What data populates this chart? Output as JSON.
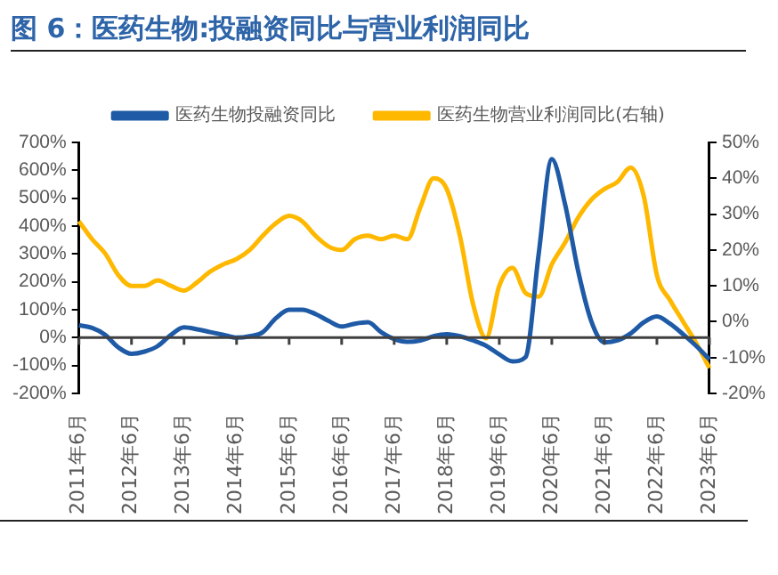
{
  "chart_data": {
    "type": "line",
    "title": "图 6：医药生物:投融资同比与营业利润同比",
    "categories": [
      "2011年6月",
      null,
      null,
      null,
      "2012年6月",
      null,
      null,
      null,
      "2013年6月",
      null,
      null,
      null,
      "2014年6月",
      null,
      null,
      null,
      "2015年6月",
      null,
      null,
      null,
      "2016年6月",
      null,
      null,
      null,
      "2017年6月",
      null,
      null,
      null,
      "2018年6月",
      null,
      null,
      null,
      "2019年6月",
      null,
      null,
      null,
      "2020年6月",
      null,
      null,
      null,
      "2021年6月",
      null,
      null,
      null,
      "2022年6月",
      null,
      null,
      null,
      "2023年6月"
    ],
    "series": [
      {
        "name": "医药生物投融资同比",
        "color": "#1f5aa6",
        "values": [
          44,
          35,
          10,
          -35,
          -58,
          -50,
          -30,
          10,
          37,
          30,
          20,
          10,
          0,
          5,
          20,
          70,
          100,
          100,
          85,
          60,
          40,
          50,
          55,
          20,
          -5,
          -15,
          -10,
          5,
          12,
          5,
          -10,
          -29,
          -60,
          -85,
          -70,
          300,
          640,
          480,
          240,
          60,
          -17,
          -10,
          15,
          55,
          76,
          50,
          12,
          -30,
          -78
        ]
      },
      {
        "name": "医药生物营业利润同比(右轴)",
        "color": "#ffb800",
        "axis": "y2",
        "values": [
          28,
          23,
          19,
          13,
          10,
          10,
          11.5,
          10,
          8.7,
          11,
          14,
          16,
          17.5,
          20,
          24,
          27.5,
          29.5,
          28,
          24,
          21,
          20,
          23,
          24,
          23,
          24,
          23,
          32,
          40,
          37,
          24,
          5,
          -4.6,
          10,
          15,
          8,
          7,
          16,
          22,
          29,
          34,
          37,
          39,
          43,
          35,
          13,
          6,
          0,
          -6,
          -12.9
        ]
      }
    ],
    "ylim": [
      -200,
      700
    ],
    "yticks": [
      {
        "value": -200,
        "label": "-200%"
      },
      {
        "value": -100,
        "label": "-100%"
      },
      {
        "value": 0,
        "label": "0%"
      },
      {
        "value": 100,
        "label": "100%"
      },
      {
        "value": 200,
        "label": "200%"
      },
      {
        "value": 300,
        "label": "300%"
      },
      {
        "value": 400,
        "label": "400%"
      },
      {
        "value": 500,
        "label": "500%"
      },
      {
        "value": 600,
        "label": "600%"
      },
      {
        "value": 700,
        "label": "700%"
      }
    ],
    "y2lim": [
      -20,
      50
    ],
    "y2ticks": [
      {
        "value": -20,
        "label": "-20%"
      },
      {
        "value": -10,
        "label": "-10%"
      },
      {
        "value": 0,
        "label": "0%"
      },
      {
        "value": 10,
        "label": "10%"
      },
      {
        "value": 20,
        "label": "20%"
      },
      {
        "value": 30,
        "label": "30%"
      },
      {
        "value": 40,
        "label": "40%"
      },
      {
        "value": 50,
        "label": "50%"
      }
    ],
    "legend": "top",
    "marker": "none"
  }
}
